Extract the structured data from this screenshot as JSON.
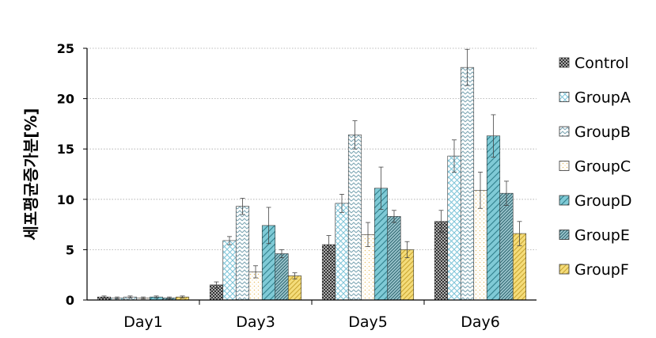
{
  "chart_data": {
    "type": "bar",
    "ylabel": "세포평균증가분[%]",
    "xlabel": "",
    "ylim": [
      0,
      25
    ],
    "yticks": [
      0,
      5,
      10,
      15,
      20,
      25
    ],
    "grid": "horizontal-dotted",
    "legend_position": "right",
    "categories": [
      "Day1",
      "Day3",
      "Day5",
      "Day6"
    ],
    "series": [
      {
        "name": "Control",
        "values": [
          0.3,
          1.5,
          5.5,
          7.8
        ],
        "errors": [
          0.1,
          0.3,
          0.9,
          1.1
        ],
        "color": "#555555",
        "pattern": "dense-cross"
      },
      {
        "name": "GroupA",
        "values": [
          0.2,
          5.9,
          9.6,
          14.3
        ],
        "errors": [
          0.1,
          0.4,
          0.9,
          1.6
        ],
        "color": "#8fd0e0",
        "pattern": "crosshatch"
      },
      {
        "name": "GroupB",
        "values": [
          0.3,
          9.3,
          16.4,
          23.1
        ],
        "errors": [
          0.1,
          0.8,
          1.4,
          1.8
        ],
        "color": "#a8c6d0",
        "pattern": "zigzag"
      },
      {
        "name": "GroupC",
        "values": [
          0.2,
          2.8,
          6.5,
          10.9
        ],
        "errors": [
          0.1,
          0.6,
          1.2,
          1.8
        ],
        "color": "#f2d58e",
        "pattern": "dotted"
      },
      {
        "name": "GroupD",
        "values": [
          0.3,
          7.4,
          11.1,
          16.3
        ],
        "errors": [
          0.1,
          1.8,
          2.1,
          2.1
        ],
        "color": "#5bb8c8",
        "pattern": "diag-wide"
      },
      {
        "name": "GroupE",
        "values": [
          0.2,
          4.6,
          8.3,
          10.6
        ],
        "errors": [
          0.1,
          0.4,
          0.6,
          1.2
        ],
        "color": "#4a8a96",
        "pattern": "diag-dense"
      },
      {
        "name": "GroupF",
        "values": [
          0.3,
          2.4,
          5.0,
          6.6
        ],
        "errors": [
          0.1,
          0.3,
          0.8,
          1.2
        ],
        "color": "#e8c84a",
        "pattern": "diag-yellow"
      }
    ]
  }
}
